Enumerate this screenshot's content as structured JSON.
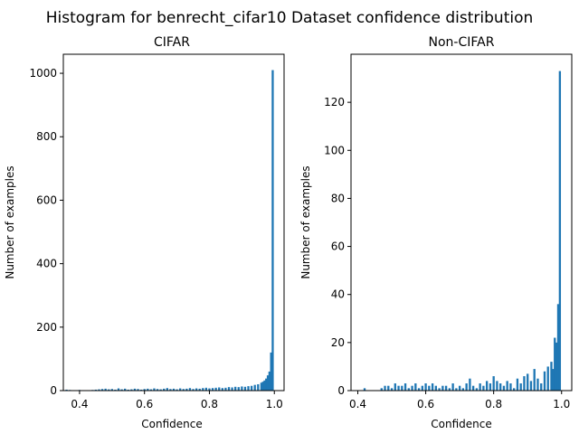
{
  "figure": {
    "title": "Histogram for benrecht_cifar10 Dataset confidence distribution"
  },
  "chart_data": [
    {
      "type": "bar",
      "title": "CIFAR",
      "xlabel": "Confidence",
      "ylabel": "Number of examples",
      "xlim": [
        0.35,
        1.03
      ],
      "ylim": [
        0,
        1060
      ],
      "xticks": [
        0.4,
        0.6,
        0.8,
        1.0
      ],
      "xtick_labels": [
        "0.4",
        "0.6",
        "0.8",
        "1.0"
      ],
      "yticks": [
        0,
        200,
        400,
        600,
        800,
        1000
      ],
      "ytick_labels": [
        "0",
        "200",
        "400",
        "600",
        "800",
        "1000"
      ],
      "bar_color": "#1f77b4",
      "bin_width": 0.0064,
      "bins_x": [
        0.36,
        0.37,
        0.38,
        0.4,
        0.42,
        0.44,
        0.45,
        0.46,
        0.47,
        0.48,
        0.49,
        0.5,
        0.51,
        0.52,
        0.53,
        0.54,
        0.55,
        0.56,
        0.57,
        0.58,
        0.59,
        0.6,
        0.61,
        0.62,
        0.63,
        0.64,
        0.65,
        0.66,
        0.67,
        0.68,
        0.69,
        0.7,
        0.71,
        0.72,
        0.73,
        0.74,
        0.75,
        0.76,
        0.77,
        0.78,
        0.79,
        0.8,
        0.81,
        0.82,
        0.83,
        0.84,
        0.85,
        0.86,
        0.87,
        0.88,
        0.89,
        0.9,
        0.91,
        0.92,
        0.93,
        0.94,
        0.95,
        0.96,
        0.965,
        0.97,
        0.975,
        0.98,
        0.985,
        0.99,
        0.995
      ],
      "counts": [
        3,
        2,
        1,
        2,
        1,
        2,
        3,
        4,
        5,
        6,
        4,
        5,
        3,
        7,
        4,
        6,
        3,
        4,
        6,
        5,
        3,
        5,
        6,
        4,
        7,
        5,
        4,
        6,
        8,
        5,
        6,
        4,
        7,
        5,
        6,
        8,
        5,
        7,
        6,
        8,
        9,
        7,
        8,
        9,
        10,
        8,
        9,
        11,
        10,
        12,
        11,
        13,
        12,
        14,
        15,
        18,
        20,
        25,
        28,
        32,
        38,
        48,
        60,
        120,
        1010
      ]
    },
    {
      "type": "bar",
      "title": "Non-CIFAR",
      "xlabel": "Confidence",
      "ylabel": "Number of examples",
      "xlim": [
        0.38,
        1.03
      ],
      "ylim": [
        0,
        140
      ],
      "xticks": [
        0.4,
        0.6,
        0.8,
        1.0
      ],
      "xtick_labels": [
        "0.4",
        "0.6",
        "0.8",
        "1.0"
      ],
      "yticks": [
        0,
        20,
        40,
        60,
        80,
        100,
        120
      ],
      "ytick_labels": [
        "0",
        "20",
        "40",
        "60",
        "80",
        "100",
        "120"
      ],
      "bar_color": "#1f77b4",
      "bin_width": 0.0062,
      "bins_x": [
        0.42,
        0.47,
        0.48,
        0.49,
        0.5,
        0.51,
        0.52,
        0.53,
        0.54,
        0.55,
        0.56,
        0.57,
        0.58,
        0.59,
        0.6,
        0.61,
        0.62,
        0.63,
        0.64,
        0.65,
        0.66,
        0.67,
        0.68,
        0.69,
        0.7,
        0.71,
        0.72,
        0.73,
        0.74,
        0.75,
        0.76,
        0.77,
        0.78,
        0.79,
        0.8,
        0.81,
        0.82,
        0.83,
        0.84,
        0.85,
        0.86,
        0.87,
        0.88,
        0.89,
        0.9,
        0.91,
        0.92,
        0.93,
        0.94,
        0.95,
        0.96,
        0.97,
        0.975,
        0.98,
        0.985,
        0.99,
        0.995
      ],
      "counts": [
        1,
        1,
        2,
        2,
        1,
        3,
        2,
        2,
        3,
        1,
        2,
        3,
        1,
        2,
        3,
        2,
        3,
        2,
        1,
        2,
        2,
        1,
        3,
        1,
        2,
        1,
        3,
        5,
        2,
        1,
        3,
        2,
        4,
        3,
        6,
        4,
        3,
        2,
        4,
        3,
        1,
        5,
        3,
        6,
        7,
        4,
        9,
        5,
        3,
        8,
        10,
        12,
        9,
        22,
        20,
        36,
        133
      ]
    }
  ]
}
